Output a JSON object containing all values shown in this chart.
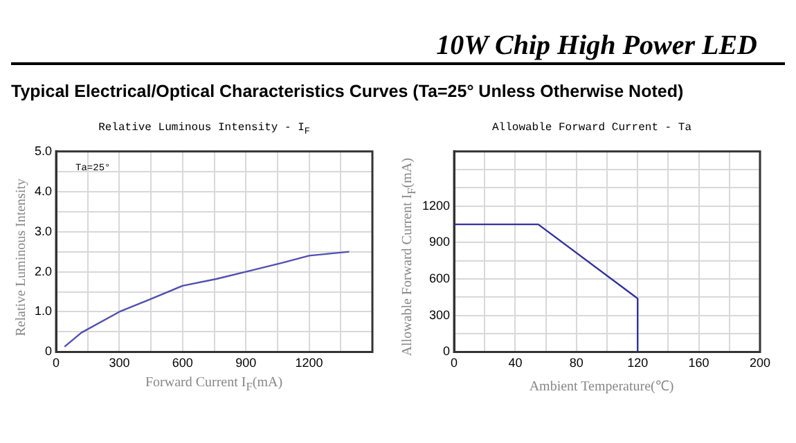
{
  "chart_data": [
    {
      "type": "other",
      "title": "10W Chip High Power LED",
      "subtitle": "Typical Electrical/Optical Characteristics Curves (Ta=25° Unless Otherwise Noted)"
    },
    {
      "type": "line",
      "title": "Relative Luminous Intensity - I$_{F}$",
      "xlabel": "Forward Current I$_{F}$(mA)",
      "ylabel": "Relative Luminous Intensity",
      "annotations": [
        "Ta=25°"
      ],
      "x": [
        40,
        120,
        300,
        440,
        600,
        760,
        900,
        1070,
        1200,
        1390
      ],
      "series": [
        {
          "color": "#5050b0",
          "values": [
            0.13,
            0.48,
            1.0,
            1.3,
            1.65,
            1.82,
            2.0,
            2.22,
            2.4,
            2.5
          ]
        }
      ],
      "xlim": [
        0,
        1500
      ],
      "xticks": [
        0,
        {
          "value": 150,
          "label": null
        },
        300,
        {
          "value": 450,
          "label": null
        },
        600,
        {
          "value": 750,
          "label": null
        },
        900,
        {
          "value": 1050,
          "label": null
        },
        1200,
        {
          "value": 1350,
          "label": null
        },
        {
          "value": 1500,
          "label": null
        }
      ],
      "ylim": [
        0,
        5
      ],
      "yticks": [
        0,
        {
          "value": 0.5,
          "label": null
        },
        {
          "value": 1,
          "label": "1.0"
        },
        {
          "value": 1.5,
          "label": null
        },
        {
          "value": 2,
          "label": "2.0"
        },
        {
          "value": 2.5,
          "label": null
        },
        {
          "value": 3,
          "label": "3.0"
        },
        {
          "value": 3.5,
          "label": null
        },
        {
          "value": 4,
          "label": "4.0"
        },
        {
          "value": 4.5,
          "label": null
        },
        {
          "value": 5,
          "label": "5.0"
        }
      ],
      "grid": true,
      "legend": false,
      "marker": "none",
      "line_style": "solid"
    },
    {
      "type": "line",
      "title": "Allowable Forward Current - Ta",
      "xlabel": "Ambient Temperature(℃)",
      "ylabel": "Allowable Forward Current I$_{F}$(mA)",
      "x": [
        0,
        55,
        120,
        120
      ],
      "series": [
        {
          "color": "#3030a0",
          "values": [
            1050,
            1050,
            440,
            0
          ]
        }
      ],
      "xlim": [
        0,
        200
      ],
      "xticks": [
        0,
        {
          "value": 20,
          "label": null
        },
        40,
        {
          "value": 60,
          "label": null
        },
        80,
        {
          "value": 100,
          "label": null
        },
        120,
        {
          "value": 140,
          "label": null
        },
        160,
        {
          "value": 180,
          "label": null
        },
        200
      ],
      "ylim": [
        0,
        1650
      ],
      "yticks": [
        0,
        {
          "value": 150,
          "label": null
        },
        300,
        {
          "value": 450,
          "label": null
        },
        600,
        {
          "value": 750,
          "label": null
        },
        900,
        {
          "value": 1050,
          "label": null
        },
        1200,
        {
          "value": 1350,
          "label": null
        },
        {
          "value": 1500,
          "label": null
        },
        {
          "value": 1650,
          "label": null
        }
      ],
      "grid": true,
      "legend": false,
      "marker": "none",
      "line_style": "solid"
    }
  ]
}
